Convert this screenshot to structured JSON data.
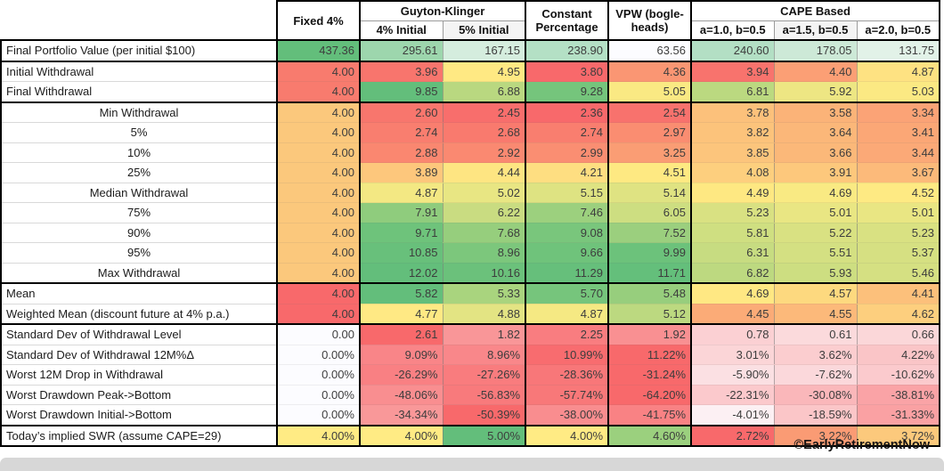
{
  "header": {
    "fixed": "Fixed 4%",
    "guyton_klinger": "Guyton-Klinger",
    "gk_subs": [
      "4% Initial",
      "5% Initial"
    ],
    "constant": "Constant Percentage",
    "vpw": "VPW (bogle-heads)",
    "cape": "CAPE Based",
    "cape_subs": [
      "a=1.0, b=0.5",
      "a=1.5, b=0.5",
      "a=2.0, b=0.5"
    ]
  },
  "chart_data": {
    "type": "table",
    "columns": [
      "Fixed 4%",
      "Guyton-Klinger 4% Initial",
      "Guyton-Klinger 5% Initial",
      "Constant Percentage",
      "VPW (bogleheads)",
      "CAPE Based a=1.0, b=0.5",
      "CAPE Based a=1.5, b=0.5",
      "CAPE Based a=2.0, b=0.5"
    ],
    "rows": [
      {
        "label": "Final Portfolio Value (per initial $100)",
        "center": false,
        "thick": true,
        "cells": [
          {
            "v": "437.36",
            "bg": "#63BE7B"
          },
          {
            "v": "295.61",
            "bg": "#9DD6AD"
          },
          {
            "v": "167.15",
            "bg": "#D5EDDE"
          },
          {
            "v": "238.90",
            "bg": "#B4E0C5"
          },
          {
            "v": "63.56",
            "bg": "#FCFCFF"
          },
          {
            "v": "240.60",
            "bg": "#B3DFC4"
          },
          {
            "v": "178.05",
            "bg": "#CDE9D7"
          },
          {
            "v": "131.75",
            "bg": "#E2F2E8"
          }
        ]
      },
      {
        "label": "Initial Withdrawal",
        "center": false,
        "thick": false,
        "cells": [
          {
            "v": "4.00",
            "bg": "#F87B6E"
          },
          {
            "v": "3.96",
            "bg": "#F8756D"
          },
          {
            "v": "4.95",
            "bg": "#FFE983"
          },
          {
            "v": "3.80",
            "bg": "#F8696B"
          },
          {
            "v": "4.36",
            "bg": "#FA9673"
          },
          {
            "v": "3.94",
            "bg": "#F8736D"
          },
          {
            "v": "4.40",
            "bg": "#FB9F75"
          },
          {
            "v": "4.87",
            "bg": "#FEE282"
          }
        ]
      },
      {
        "label": "Final Withdrawal",
        "center": false,
        "thick": true,
        "cells": [
          {
            "v": "4.00",
            "bg": "#F87B6E"
          },
          {
            "v": "9.85",
            "bg": "#63BE7B"
          },
          {
            "v": "6.88",
            "bg": "#B9D880"
          },
          {
            "v": "9.28",
            "bg": "#75C57C"
          },
          {
            "v": "5.05",
            "bg": "#FAE983"
          },
          {
            "v": "6.81",
            "bg": "#BBD980"
          },
          {
            "v": "5.92",
            "bg": "#EDE683"
          },
          {
            "v": "5.03",
            "bg": "#FBE983"
          }
        ]
      },
      {
        "label": "Min Withdrawal",
        "center": true,
        "thick": false,
        "cells": [
          {
            "v": "4.00",
            "bg": "#FBC87C"
          },
          {
            "v": "2.60",
            "bg": "#F8766D"
          },
          {
            "v": "2.45",
            "bg": "#F86E6C"
          },
          {
            "v": "2.36",
            "bg": "#F8696B"
          },
          {
            "v": "2.54",
            "bg": "#F8726D"
          },
          {
            "v": "3.78",
            "bg": "#FCC17B"
          },
          {
            "v": "3.58",
            "bg": "#FBB378"
          },
          {
            "v": "3.34",
            "bg": "#FBA376"
          }
        ]
      },
      {
        "label": "5%",
        "center": true,
        "thick": false,
        "cells": [
          {
            "v": "4.00",
            "bg": "#FBC87C"
          },
          {
            "v": "2.74",
            "bg": "#F97E6F"
          },
          {
            "v": "2.68",
            "bg": "#F97A6E"
          },
          {
            "v": "2.74",
            "bg": "#F97E6F"
          },
          {
            "v": "2.97",
            "bg": "#FA8D71"
          },
          {
            "v": "3.82",
            "bg": "#FCC37B"
          },
          {
            "v": "3.64",
            "bg": "#FBB779"
          },
          {
            "v": "3.41",
            "bg": "#FBA776"
          }
        ]
      },
      {
        "label": "10%",
        "center": true,
        "thick": false,
        "cells": [
          {
            "v": "4.00",
            "bg": "#FBC87C"
          },
          {
            "v": "2.88",
            "bg": "#FA8770"
          },
          {
            "v": "2.92",
            "bg": "#FA8971"
          },
          {
            "v": "2.99",
            "bg": "#FA8E72"
          },
          {
            "v": "3.25",
            "bg": "#FA9D74"
          },
          {
            "v": "3.85",
            "bg": "#FCC57C"
          },
          {
            "v": "3.66",
            "bg": "#FBB879"
          },
          {
            "v": "3.44",
            "bg": "#FBA977"
          }
        ]
      },
      {
        "label": "25%",
        "center": true,
        "thick": false,
        "cells": [
          {
            "v": "4.00",
            "bg": "#FBC87C"
          },
          {
            "v": "3.89",
            "bg": "#FDC77C"
          },
          {
            "v": "4.44",
            "bg": "#FEE582"
          },
          {
            "v": "4.21",
            "bg": "#FEDE81"
          },
          {
            "v": "4.51",
            "bg": "#FEE982"
          },
          {
            "v": "4.08",
            "bg": "#FDCF7E"
          },
          {
            "v": "3.91",
            "bg": "#FDC87C"
          },
          {
            "v": "3.67",
            "bg": "#FCBA7A"
          }
        ]
      },
      {
        "label": "Median Withdrawal",
        "center": true,
        "thick": false,
        "cells": [
          {
            "v": "4.00",
            "bg": "#FBC87C"
          },
          {
            "v": "4.87",
            "bg": "#F3E883"
          },
          {
            "v": "5.02",
            "bg": "#E8E683"
          },
          {
            "v": "5.15",
            "bg": "#DEE382"
          },
          {
            "v": "5.14",
            "bg": "#DFE382"
          },
          {
            "v": "4.49",
            "bg": "#FEE882"
          },
          {
            "v": "4.69",
            "bg": "#F9EA83"
          },
          {
            "v": "4.52",
            "bg": "#FEEA83"
          }
        ]
      },
      {
        "label": "75%",
        "center": true,
        "thick": false,
        "cells": [
          {
            "v": "4.00",
            "bg": "#FBC87C"
          },
          {
            "v": "7.91",
            "bg": "#8FCC7D"
          },
          {
            "v": "6.22",
            "bg": "#C9DC81"
          },
          {
            "v": "7.46",
            "bg": "#9CD07E"
          },
          {
            "v": "6.05",
            "bg": "#CDDE81"
          },
          {
            "v": "5.23",
            "bg": "#D9E182"
          },
          {
            "v": "5.01",
            "bg": "#E9E683"
          },
          {
            "v": "5.01",
            "bg": "#E9E683"
          }
        ]
      },
      {
        "label": "90%",
        "center": true,
        "thick": false,
        "cells": [
          {
            "v": "4.00",
            "bg": "#FBC87C"
          },
          {
            "v": "9.71",
            "bg": "#6EC37B"
          },
          {
            "v": "7.68",
            "bg": "#96CE7D"
          },
          {
            "v": "9.08",
            "bg": "#79C67C"
          },
          {
            "v": "7.52",
            "bg": "#9BCF7E"
          },
          {
            "v": "5.81",
            "bg": "#CFDF81"
          },
          {
            "v": "5.22",
            "bg": "#D9E182"
          },
          {
            "v": "5.23",
            "bg": "#D9E182"
          }
        ]
      },
      {
        "label": "95%",
        "center": true,
        "thick": false,
        "cells": [
          {
            "v": "4.00",
            "bg": "#FBC87C"
          },
          {
            "v": "10.85",
            "bg": "#68C07B"
          },
          {
            "v": "8.96",
            "bg": "#7CC77C"
          },
          {
            "v": "9.66",
            "bg": "#6FC37B"
          },
          {
            "v": "9.99",
            "bg": "#6CC27B"
          },
          {
            "v": "6.31",
            "bg": "#C7DC81"
          },
          {
            "v": "5.51",
            "bg": "#D4E082"
          },
          {
            "v": "5.37",
            "bg": "#D6E082"
          }
        ]
      },
      {
        "label": "Max Withdrawal",
        "center": true,
        "thick": true,
        "cells": [
          {
            "v": "4.00",
            "bg": "#FBC87C"
          },
          {
            "v": "12.02",
            "bg": "#63BE7B"
          },
          {
            "v": "10.16",
            "bg": "#6BC17B"
          },
          {
            "v": "11.29",
            "bg": "#66BF7B"
          },
          {
            "v": "11.71",
            "bg": "#64BF7B"
          },
          {
            "v": "6.82",
            "bg": "#BDD980"
          },
          {
            "v": "5.93",
            "bg": "#CDDE81"
          },
          {
            "v": "5.46",
            "bg": "#D5E082"
          }
        ]
      },
      {
        "label": "Mean",
        "center": false,
        "thick": false,
        "cells": [
          {
            "v": "4.00",
            "bg": "#F8696B"
          },
          {
            "v": "5.82",
            "bg": "#63BE7B"
          },
          {
            "v": "5.33",
            "bg": "#A9D47E"
          },
          {
            "v": "5.70",
            "bg": "#76C57C"
          },
          {
            "v": "5.48",
            "bg": "#97CE7D"
          },
          {
            "v": "4.69",
            "bg": "#FFE883"
          },
          {
            "v": "4.57",
            "bg": "#FDD97F"
          },
          {
            "v": "4.41",
            "bg": "#FCC07B"
          }
        ]
      },
      {
        "label": "Weighted Mean (discount future at 4% p.a.)",
        "center": false,
        "thick": true,
        "cells": [
          {
            "v": "4.00",
            "bg": "#F8696B"
          },
          {
            "v": "4.77",
            "bg": "#FFE984"
          },
          {
            "v": "4.88",
            "bg": "#E3E483"
          },
          {
            "v": "4.87",
            "bg": "#F5E983"
          },
          {
            "v": "5.12",
            "bg": "#BCD980"
          },
          {
            "v": "4.45",
            "bg": "#FBAB77"
          },
          {
            "v": "4.55",
            "bg": "#FCB97A"
          },
          {
            "v": "4.62",
            "bg": "#FDCF7E"
          }
        ]
      },
      {
        "label": "Standard Dev of Withdrawal Level",
        "center": false,
        "thick": false,
        "cells": [
          {
            "v": "0.00",
            "bg": "#FCFCFF"
          },
          {
            "v": "2.61",
            "bg": "#F8696B"
          },
          {
            "v": "1.82",
            "bg": "#F99698"
          },
          {
            "v": "2.25",
            "bg": "#F97D80"
          },
          {
            "v": "1.92",
            "bg": "#F99092"
          },
          {
            "v": "0.78",
            "bg": "#FBD0D3"
          },
          {
            "v": "0.61",
            "bg": "#FBDADC"
          },
          {
            "v": "0.66",
            "bg": "#FBD7D9"
          }
        ]
      },
      {
        "label": "Standard Dev of Withdrawal 12M%Δ",
        "center": false,
        "thick": false,
        "cells": [
          {
            "v": "0.00%",
            "bg": "#FCFCFF"
          },
          {
            "v": "9.09%",
            "bg": "#F98588"
          },
          {
            "v": "8.96%",
            "bg": "#F9878A"
          },
          {
            "v": "10.99%",
            "bg": "#F86C6F"
          },
          {
            "v": "11.22%",
            "bg": "#F8696B"
          },
          {
            "v": "3.01%",
            "bg": "#FBD5D7"
          },
          {
            "v": "3.62%",
            "bg": "#FBCDCF"
          },
          {
            "v": "4.22%",
            "bg": "#FAC5C7"
          }
        ]
      },
      {
        "label": "Worst 12M Drop in Withdrawal",
        "center": false,
        "thick": false,
        "cells": [
          {
            "v": "0.00%",
            "bg": "#FCFCFF"
          },
          {
            "v": "-26.29%",
            "bg": "#F98083"
          },
          {
            "v": "-27.26%",
            "bg": "#F97C7E"
          },
          {
            "v": "-28.36%",
            "bg": "#F87779"
          },
          {
            "v": "-31.24%",
            "bg": "#F8696B"
          },
          {
            "v": "-5.90%",
            "bg": "#FBE0E3"
          },
          {
            "v": "-7.62%",
            "bg": "#FBD8DB"
          },
          {
            "v": "-10.62%",
            "bg": "#FBCACD"
          }
        ]
      },
      {
        "label": "Worst Drawdown Peak->Bottom",
        "center": false,
        "thick": false,
        "cells": [
          {
            "v": "0.00%",
            "bg": "#FCFCFF"
          },
          {
            "v": "-48.06%",
            "bg": "#F98E90"
          },
          {
            "v": "-56.83%",
            "bg": "#F87A7C"
          },
          {
            "v": "-57.74%",
            "bg": "#F87879"
          },
          {
            "v": "-64.20%",
            "bg": "#F8696B"
          },
          {
            "v": "-22.31%",
            "bg": "#FBC9CC"
          },
          {
            "v": "-30.08%",
            "bg": "#FAB7BA"
          },
          {
            "v": "-38.81%",
            "bg": "#FAA3A6"
          }
        ]
      },
      {
        "label": "Worst Drawdown Initial->Bottom",
        "center": false,
        "thick": true,
        "cells": [
          {
            "v": "0.00%",
            "bg": "#FCFCFF"
          },
          {
            "v": "-34.34%",
            "bg": "#F99899"
          },
          {
            "v": "-50.39%",
            "bg": "#F8696B"
          },
          {
            "v": "-38.00%",
            "bg": "#F98D8F"
          },
          {
            "v": "-41.75%",
            "bg": "#F98284"
          },
          {
            "v": "-4.01%",
            "bg": "#FCF0F3"
          },
          {
            "v": "-18.59%",
            "bg": "#FBC6C8"
          },
          {
            "v": "-31.33%",
            "bg": "#FAA1A3"
          }
        ]
      },
      {
        "label": "Today’s implied SWR (assume CAPE=29)",
        "center": false,
        "thick": true,
        "cells": [
          {
            "v": "4.00%",
            "bg": "#FFEB84"
          },
          {
            "v": "4.00%",
            "bg": "#FFEB84"
          },
          {
            "v": "5.00%",
            "bg": "#63BE7B"
          },
          {
            "v": "4.00%",
            "bg": "#FFEB84"
          },
          {
            "v": "4.60%",
            "bg": "#9BD07E"
          },
          {
            "v": "2.72%",
            "bg": "#F8696B"
          },
          {
            "v": "3.22%",
            "bg": "#FA9B74"
          },
          {
            "v": "3.72%",
            "bg": "#FCC97C"
          }
        ]
      }
    ]
  },
  "footer": {
    "copyright": "©EarlyRetirementNow"
  },
  "colors": {
    "heat_low": "#F8696B",
    "heat_mid": "#FFEB84",
    "heat_high": "#63BE7B",
    "neutral_cell": "#FCFCFF",
    "border": "#000000",
    "bottom_bar": "#D7D7D7"
  }
}
